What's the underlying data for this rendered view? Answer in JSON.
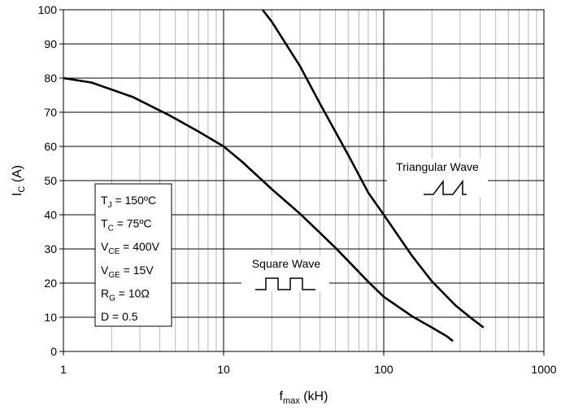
{
  "chart_data": {
    "type": "line",
    "title": "",
    "xlabel": {
      "main": "f",
      "sub": "max",
      "tail": " (kH)"
    },
    "ylabel": {
      "main": "I",
      "sub": "C",
      "tail": " (A)"
    },
    "x_scale": "log",
    "xlim": [
      1,
      1000
    ],
    "ylim": [
      0,
      100
    ],
    "x_ticks": [
      1,
      10,
      100,
      1000
    ],
    "x_tick_labels": [
      "1",
      "10",
      "100",
      "1000"
    ],
    "y_ticks": [
      0,
      10,
      20,
      30,
      40,
      50,
      60,
      70,
      80,
      90,
      100
    ],
    "y_tick_labels": [
      "0",
      "10",
      "20",
      "30",
      "40",
      "50",
      "60",
      "70",
      "80",
      "90",
      "100"
    ],
    "grid": true,
    "series": [
      {
        "name": "Square Wave",
        "x": [
          1,
          1.5,
          2.7,
          4.5,
          7,
          10,
          13,
          20,
          30,
          50,
          80,
          100,
          150,
          200,
          250,
          270
        ],
        "y": [
          80,
          78.7,
          74.5,
          69.3,
          64.3,
          60,
          55.6,
          47.5,
          40.3,
          30.3,
          20.4,
          16,
          10.3,
          7,
          4.3,
          3
        ]
      },
      {
        "name": "Triangular Wave",
        "x": [
          17.5,
          20,
          30,
          40,
          60,
          80,
          100,
          150,
          200,
          280,
          350,
          420
        ],
        "y": [
          100,
          96.5,
          83.5,
          72.5,
          57.5,
          46.5,
          40,
          28,
          20.5,
          13.5,
          9.8,
          7
        ]
      }
    ],
    "annotations": {
      "square_wave": "Square Wave",
      "triangular_wave": "Triangular Wave",
      "conditions": [
        {
          "main": "T",
          "sub": "J",
          "rest": " = 150ºC"
        },
        {
          "main": "T",
          "sub": "C",
          "rest": " = 75ºC"
        },
        {
          "main": "V",
          "sub": "CE",
          "rest": " = 400V"
        },
        {
          "main": "V",
          "sub": "GE",
          "rest": " = 15V"
        },
        {
          "main": "R",
          "sub": "G",
          "rest": " = 10Ω"
        },
        {
          "main": "D = 0.5",
          "sub": "",
          "rest": ""
        }
      ]
    }
  }
}
